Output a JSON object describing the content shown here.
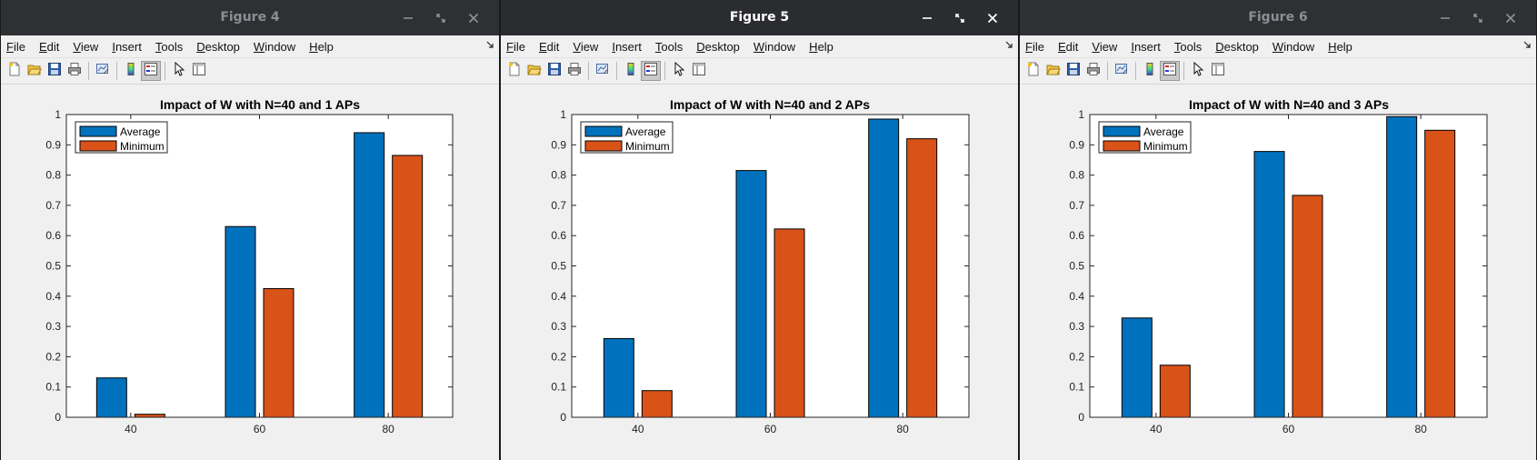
{
  "menu_labels": [
    "File",
    "Edit",
    "View",
    "Insert",
    "Tools",
    "Desktop",
    "Window",
    "Help"
  ],
  "toolbar_icons": [
    "new-figure-icon",
    "open-file-icon",
    "save-icon",
    "print-icon",
    "link-plot-icon",
    "colorbar-icon",
    "legend-icon",
    "pointer-icon",
    "property-editor-icon"
  ],
  "colors": {
    "average": "#0072BD",
    "minimum": "#D95319"
  },
  "windows": [
    {
      "title": "Figure 4",
      "active": false,
      "chart_data": {
        "type": "bar",
        "title": "Impact of W with N=40 and 1 APs",
        "categories": [
          "40",
          "60",
          "80"
        ],
        "series": [
          {
            "name": "Average",
            "values": [
              0.13,
              0.63,
              0.94
            ]
          },
          {
            "name": "Minimum",
            "values": [
              0.01,
              0.425,
              0.865
            ]
          }
        ],
        "ylim": [
          0,
          1
        ],
        "yticks": [
          "0",
          "0.1",
          "0.2",
          "0.3",
          "0.4",
          "0.5",
          "0.6",
          "0.7",
          "0.8",
          "0.9",
          "1"
        ],
        "legend": "top-left"
      }
    },
    {
      "title": "Figure 5",
      "active": true,
      "chart_data": {
        "type": "bar",
        "title": "Impact of W with N=40 and 2 APs",
        "categories": [
          "40",
          "60",
          "80"
        ],
        "series": [
          {
            "name": "Average",
            "values": [
              0.26,
              0.815,
              0.985
            ]
          },
          {
            "name": "Minimum",
            "values": [
              0.088,
              0.622,
              0.92
            ]
          }
        ],
        "ylim": [
          0,
          1
        ],
        "yticks": [
          "0",
          "0.1",
          "0.2",
          "0.3",
          "0.4",
          "0.5",
          "0.6",
          "0.7",
          "0.8",
          "0.9",
          "1"
        ],
        "legend": "top-left"
      }
    },
    {
      "title": "Figure 6",
      "active": false,
      "chart_data": {
        "type": "bar",
        "title": "Impact of W with N=40 and 3 APs",
        "categories": [
          "40",
          "60",
          "80"
        ],
        "series": [
          {
            "name": "Average",
            "values": [
              0.328,
              0.878,
              0.993
            ]
          },
          {
            "name": "Minimum",
            "values": [
              0.172,
              0.733,
              0.948
            ]
          }
        ],
        "ylim": [
          0,
          1
        ],
        "yticks": [
          "0",
          "0.1",
          "0.2",
          "0.3",
          "0.4",
          "0.5",
          "0.6",
          "0.7",
          "0.8",
          "0.9",
          "1"
        ],
        "legend": "top-left"
      }
    }
  ]
}
